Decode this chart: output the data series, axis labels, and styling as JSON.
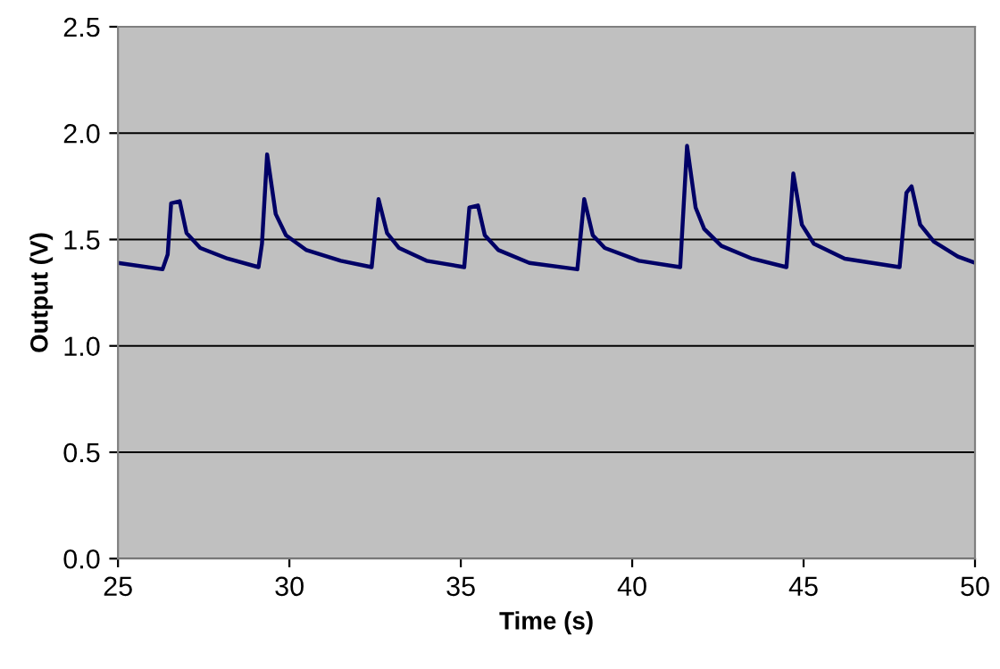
{
  "chart_data": {
    "type": "line",
    "xlabel": "Time (s)",
    "ylabel": "Output (V)",
    "x": [
      25,
      26.3,
      26.45,
      26.55,
      26.8,
      27.0,
      27.4,
      28.2,
      29.1,
      29.2,
      29.35,
      29.6,
      29.9,
      30.5,
      31.5,
      32.4,
      32.6,
      32.85,
      33.2,
      34,
      35.1,
      35.25,
      35.5,
      35.7,
      36.1,
      37,
      38.4,
      38.6,
      38.85,
      39.2,
      40.2,
      41.4,
      41.6,
      41.85,
      42.1,
      42.6,
      43.5,
      44.5,
      44.7,
      44.95,
      45.3,
      46.2,
      47.8,
      48.0,
      48.15,
      48.4,
      48.8,
      49.5,
      50
    ],
    "series": [
      {
        "color": "#000066",
        "values": [
          1.39,
          1.36,
          1.43,
          1.67,
          1.68,
          1.53,
          1.46,
          1.41,
          1.37,
          1.48,
          1.9,
          1.62,
          1.52,
          1.45,
          1.4,
          1.37,
          1.69,
          1.53,
          1.46,
          1.4,
          1.37,
          1.65,
          1.66,
          1.52,
          1.45,
          1.39,
          1.36,
          1.69,
          1.52,
          1.46,
          1.4,
          1.37,
          1.94,
          1.65,
          1.55,
          1.47,
          1.41,
          1.37,
          1.81,
          1.57,
          1.48,
          1.41,
          1.37,
          1.72,
          1.75,
          1.57,
          1.49,
          1.42,
          1.39
        ]
      }
    ],
    "xlim": [
      25,
      50
    ],
    "ylim": [
      0,
      2.5
    ],
    "xticks": [
      25,
      30,
      35,
      40,
      45,
      50
    ],
    "yticks": [
      {
        "value": 0,
        "label": "0.0"
      },
      {
        "value": 0.5,
        "label": "0.5"
      },
      {
        "value": 1,
        "label": "1.0"
      },
      {
        "value": 1.5,
        "label": "1.5"
      },
      {
        "value": 2,
        "label": "2.0"
      },
      {
        "value": 2.5,
        "label": "2.5"
      }
    ],
    "grid": "y",
    "line_style": "solid"
  }
}
